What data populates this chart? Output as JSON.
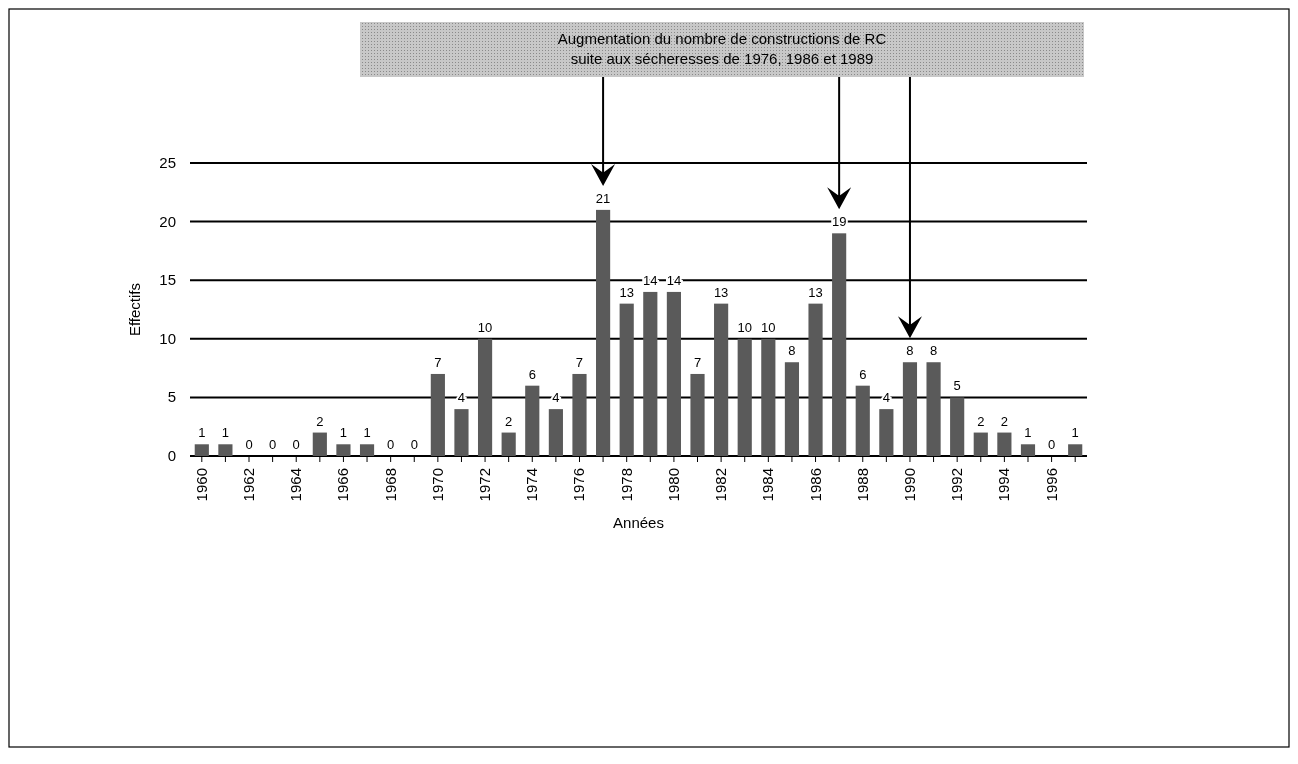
{
  "chart_data": {
    "type": "bar",
    "xlabel": "Années",
    "ylabel": "Effectifs",
    "annotations": [
      "Augmentation du nombre de constructions de RC\nsuite aux sécheresses de 1976, 1986 et 1989"
    ],
    "categories": [
      "1960",
      null,
      "1962",
      null,
      "1964",
      null,
      "1966",
      null,
      "1968",
      null,
      "1970",
      null,
      "1972",
      null,
      "1974",
      null,
      "1976",
      null,
      "1978",
      null,
      "1980",
      null,
      "1982",
      null,
      "1984",
      null,
      "1986",
      null,
      "1988",
      null,
      "1990",
      null,
      "1992",
      null,
      "1994",
      null,
      "1996",
      null
    ],
    "values": [
      1,
      1,
      0,
      0,
      0,
      2,
      1,
      1,
      0,
      0,
      7,
      4,
      10,
      2,
      6,
      4,
      7,
      21,
      13,
      14,
      14,
      7,
      13,
      10,
      10,
      8,
      13,
      19,
      6,
      4,
      8,
      8,
      5,
      2,
      2,
      1,
      0,
      1
    ],
    "color": "#5a5a5a",
    "data_labels": true,
    "ylim": [
      0,
      25
    ],
    "yticks": [
      0,
      5,
      10,
      15,
      20,
      25
    ],
    "grid": "y"
  }
}
